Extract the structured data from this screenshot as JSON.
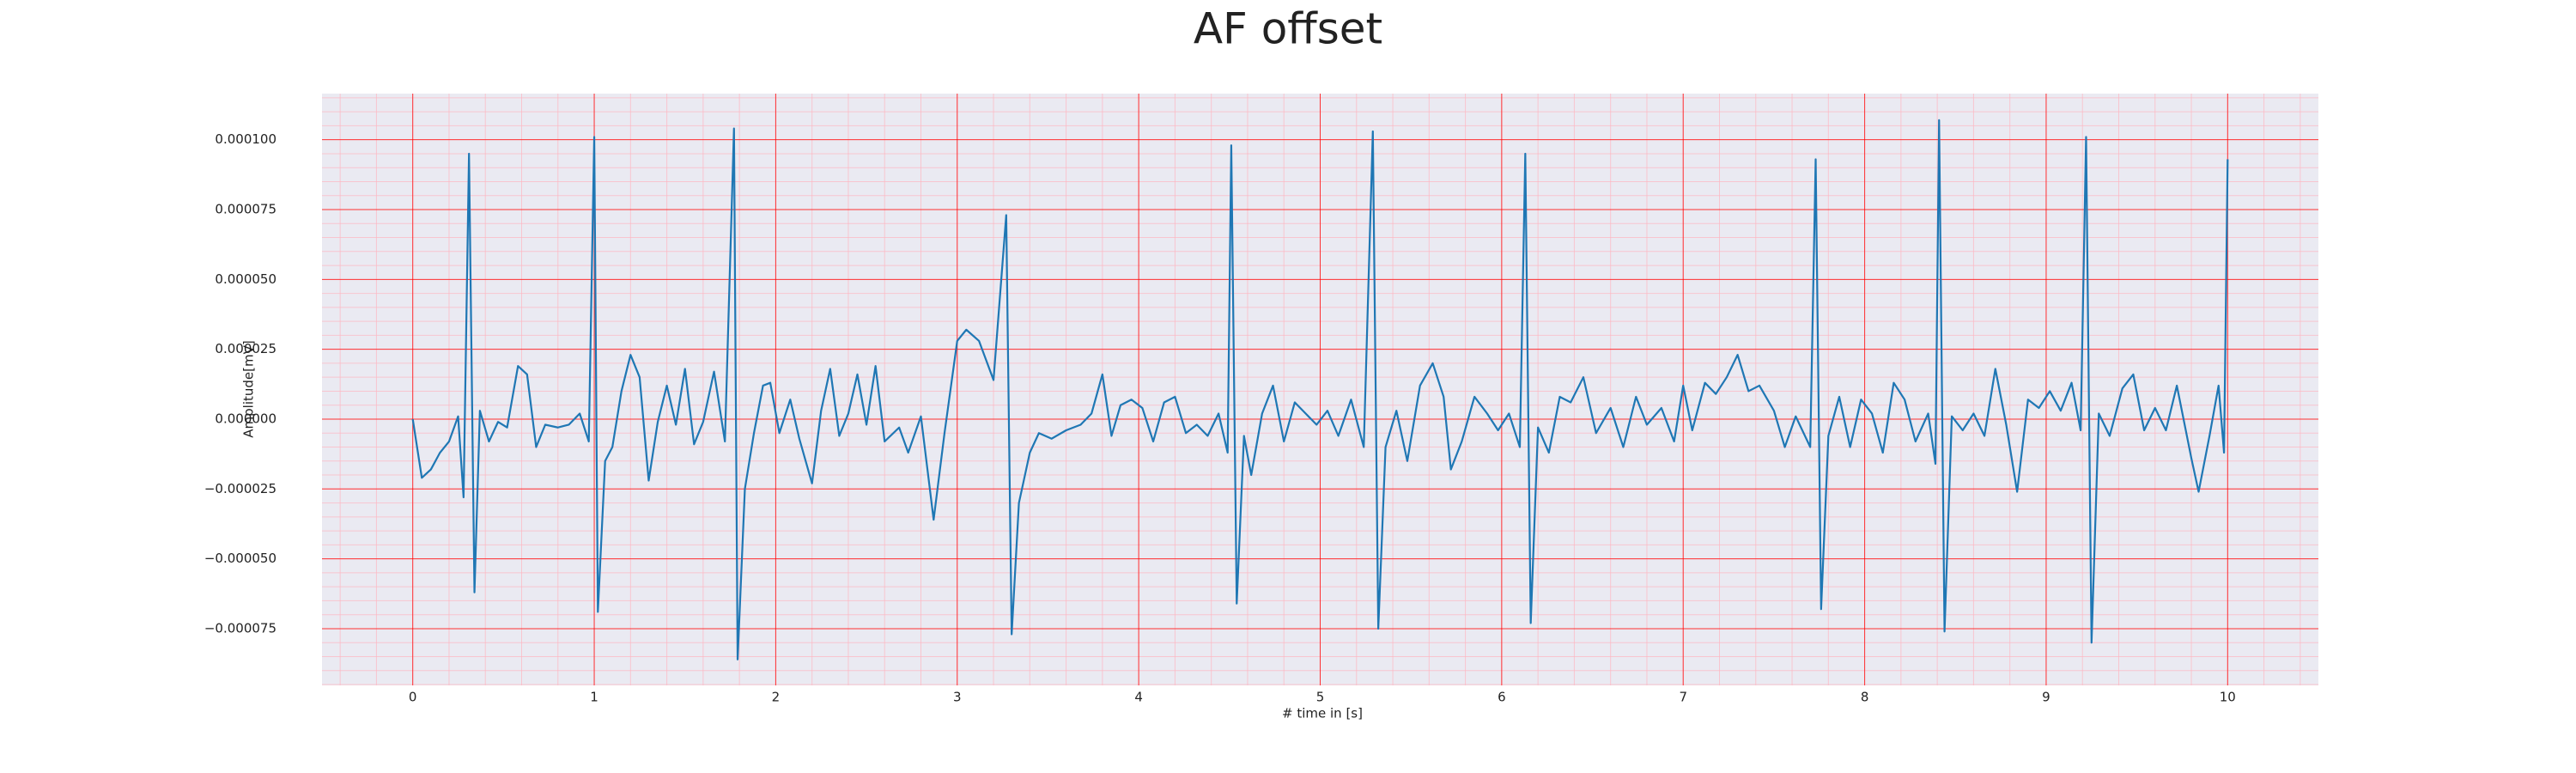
{
  "chart_data": {
    "type": "line",
    "title": "AF offset",
    "xlabel": "# time in [s]",
    "ylabel": "Amplitude[mV]",
    "xlim": [
      -0.5,
      10.5
    ],
    "ylim": [
      -9.53e-05,
      0.0001165
    ],
    "xticks": [
      0,
      1,
      2,
      3,
      4,
      5,
      6,
      7,
      8,
      9,
      10
    ],
    "yticks": [
      {
        "value": -7.5e-05,
        "label": "−0.000075"
      },
      {
        "value": -5e-05,
        "label": "−0.000050"
      },
      {
        "value": -2.5e-05,
        "label": "−0.000025"
      },
      {
        "value": 0,
        "label": "0.000000"
      },
      {
        "value": 2.5e-05,
        "label": "0.000025"
      },
      {
        "value": 5e-05,
        "label": "0.000050"
      },
      {
        "value": 7.5e-05,
        "label": "0.000075"
      },
      {
        "value": 0.0001,
        "label": "0.000100"
      }
    ],
    "grid": true,
    "grid_color": "#ff0000",
    "minor_grid_color": "#ffb6c1",
    "minor_divisions": 5,
    "background": "#eaeaf2",
    "x": [
      0,
      0.05,
      0.1,
      0.15,
      0.2,
      0.25,
      0.28,
      0.31,
      0.34,
      0.37,
      0.42,
      0.47,
      0.52,
      0.58,
      0.63,
      0.68,
      0.73,
      0.8,
      0.86,
      0.92,
      0.97,
      1.0,
      1.02,
      1.06,
      1.1,
      1.15,
      1.2,
      1.25,
      1.3,
      1.35,
      1.4,
      1.45,
      1.5,
      1.55,
      1.6,
      1.66,
      1.72,
      1.77,
      1.79,
      1.83,
      1.88,
      1.93,
      1.97,
      2.02,
      2.08,
      2.13,
      2.2,
      2.25,
      2.3,
      2.35,
      2.4,
      2.45,
      2.5,
      2.55,
      2.6,
      2.68,
      2.73,
      2.8,
      2.87,
      2.93,
      3.0,
      3.05,
      3.12,
      3.2,
      3.27,
      3.3,
      3.34,
      3.4,
      3.45,
      3.52,
      3.6,
      3.68,
      3.74,
      3.8,
      3.85,
      3.9,
      3.96,
      4.02,
      4.08,
      4.14,
      4.2,
      4.26,
      4.32,
      4.38,
      4.44,
      4.49,
      4.51,
      4.54,
      4.58,
      4.62,
      4.68,
      4.74,
      4.8,
      4.86,
      4.92,
      4.98,
      5.04,
      5.1,
      5.17,
      5.24,
      5.29,
      5.32,
      5.36,
      5.42,
      5.48,
      5.55,
      5.62,
      5.68,
      5.72,
      5.78,
      5.85,
      5.92,
      5.98,
      6.04,
      6.1,
      6.13,
      6.16,
      6.2,
      6.26,
      6.32,
      6.38,
      6.45,
      6.52,
      6.6,
      6.67,
      6.74,
      6.8,
      6.88,
      6.95,
      7.0,
      7.05,
      7.12,
      7.18,
      7.24,
      7.3,
      7.36,
      7.42,
      7.5,
      7.56,
      7.62,
      7.7,
      7.73,
      7.76,
      7.8,
      7.86,
      7.92,
      7.98,
      8.04,
      8.1,
      8.16,
      8.22,
      8.28,
      8.35,
      8.39,
      8.41,
      8.44,
      8.48,
      8.54,
      8.6,
      8.66,
      8.72,
      8.78,
      8.84,
      8.9,
      8.96,
      9.02,
      9.08,
      9.14,
      9.19,
      9.22,
      9.25,
      9.29,
      9.35,
      9.42,
      9.48,
      9.54,
      9.6,
      9.66,
      9.72,
      9.8,
      9.84,
      9.9,
      9.95,
      9.98,
      10.0
    ],
    "series": [
      {
        "color": "#1f77b4",
        "values": [
          0,
          -2.1e-05,
          -1.8e-05,
          -1.2e-05,
          -8e-06,
          1e-06,
          -2.8e-05,
          9.5e-05,
          -6.2e-05,
          3e-06,
          -8e-06,
          -1e-06,
          -3e-06,
          1.9e-05,
          1.6e-05,
          -1e-05,
          -2e-06,
          -3e-06,
          -2e-06,
          2e-06,
          -8e-06,
          0.000101,
          -6.9e-05,
          -1.5e-05,
          -1e-05,
          1e-05,
          2.3e-05,
          1.5e-05,
          -2.2e-05,
          -1e-06,
          1.2e-05,
          -2e-06,
          1.8e-05,
          -9e-06,
          -1e-06,
          1.7e-05,
          -8e-06,
          0.000104,
          -8.6e-05,
          -2.5e-05,
          -5e-06,
          1.2e-05,
          1.3e-05,
          -5e-06,
          7e-06,
          -7e-06,
          -2.3e-05,
          3e-06,
          1.8e-05,
          -6e-06,
          2e-06,
          1.6e-05,
          -2e-06,
          1.9e-05,
          -8e-06,
          -3e-06,
          -1.2e-05,
          1e-06,
          -3.6e-05,
          -5e-06,
          2.8e-05,
          3.2e-05,
          2.8e-05,
          1.4e-05,
          7.3e-05,
          -7.7e-05,
          -3e-05,
          -1.2e-05,
          -5e-06,
          -7e-06,
          -4e-06,
          -2e-06,
          2e-06,
          1.6e-05,
          -6e-06,
          5e-06,
          7e-06,
          4e-06,
          -8e-06,
          6e-06,
          8e-06,
          -5e-06,
          -2e-06,
          -6e-06,
          2e-06,
          -1.2e-05,
          9.8e-05,
          -6.6e-05,
          -6e-06,
          -2e-05,
          2e-06,
          1.2e-05,
          -8e-06,
          6e-06,
          2e-06,
          -2e-06,
          3e-06,
          -6e-06,
          7e-06,
          -1e-05,
          0.000103,
          -7.5e-05,
          -1e-05,
          3e-06,
          -1.5e-05,
          1.2e-05,
          2e-05,
          8e-06,
          -1.8e-05,
          -8e-06,
          8e-06,
          2e-06,
          -4e-06,
          2e-06,
          -1e-05,
          9.5e-05,
          -7.3e-05,
          -3e-06,
          -1.2e-05,
          8e-06,
          6e-06,
          1.5e-05,
          -5e-06,
          4e-06,
          -1e-05,
          8e-06,
          -2e-06,
          4e-06,
          -8e-06,
          1.2e-05,
          -4e-06,
          1.3e-05,
          9e-06,
          1.5e-05,
          2.3e-05,
          1e-05,
          1.2e-05,
          3e-06,
          -1e-05,
          1e-06,
          -1e-05,
          9.3e-05,
          -6.8e-05,
          -6e-06,
          8e-06,
          -1e-05,
          7e-06,
          2e-06,
          -1.2e-05,
          1.3e-05,
          7e-06,
          -8e-06,
          2e-06,
          -1.6e-05,
          0.000107,
          -7.6e-05,
          1e-06,
          -4e-06,
          2e-06,
          -6e-06,
          1.8e-05,
          -2e-06,
          -2.6e-05,
          7e-06,
          4e-06,
          1e-05,
          3e-06,
          1.3e-05,
          -4e-06,
          0.000101,
          -8e-05,
          2e-06,
          -6e-06,
          1.1e-05,
          1.6e-05,
          -4e-06,
          4e-06,
          -4e-06,
          1.2e-05,
          -1.4e-05,
          -2.6e-05,
          -6e-06,
          1.2e-05,
          -1.2e-05,
          9.3e-05
        ]
      }
    ]
  }
}
